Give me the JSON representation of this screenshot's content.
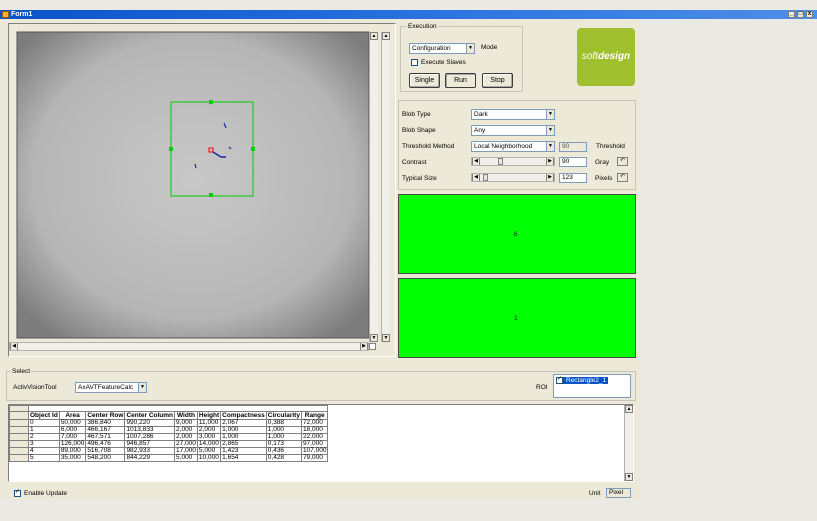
{
  "window": {
    "title": "Form1",
    "minimize": "_",
    "maximize": "□",
    "close": "x"
  },
  "execution": {
    "group_label": "Execution",
    "mode_value": "Configuration",
    "mode_label": "Mode",
    "execute_slaves_label": "Execute Slaves",
    "single_label": "Single",
    "run_label": "Run",
    "stop_label": "Stop"
  },
  "logo": {
    "part1": "soft",
    "part2": "design",
    "bg_color": "#9fbf2e"
  },
  "params": {
    "blob_type_label": "Blob Type",
    "blob_type_value": "Dark",
    "blob_shape_label": "Blob Shape",
    "blob_shape_value": "Any",
    "threshold_method_label": "Threshold Method",
    "threshold_method_value": "Local Neighborhood",
    "threshold_value": "90",
    "threshold_label": "Threshold",
    "contrast_label": "Contrast",
    "contrast_value": "90",
    "contrast_unit": "Gray",
    "contrast_level": 0.3,
    "typical_size_label": "Typical Size",
    "typical_size_value": "123",
    "typical_size_unit": "Pixels",
    "typical_size_level": 0.05
  },
  "panels": {
    "top_value": "6",
    "bottom_value": "1",
    "color": "#00ff00"
  },
  "select": {
    "group_label": "Select",
    "tool_label": "ActivVisionTool",
    "tool_value": "AxAVTFeatureCalc",
    "roi_label": "ROI",
    "roi_item": "Rectangle2_1"
  },
  "table": {
    "columns": [
      "Object Id",
      "Area",
      "Center Row",
      "Center Column",
      "Width",
      "Height",
      "Compactness",
      "Circularity",
      "Range"
    ],
    "rows": [
      [
        "0",
        "50,000",
        "386,840",
        "990,220",
        "9,000",
        "11,000",
        "2,067",
        "0,388",
        "72,000"
      ],
      [
        "1",
        "6,000",
        "466,167",
        "1013,833",
        "2,000",
        "2,000",
        "1,000",
        "1,000",
        "18,000"
      ],
      [
        "2",
        "7,000",
        "467,571",
        "1007,286",
        "2,000",
        "3,000",
        "1,000",
        "1,000",
        "22,000"
      ],
      [
        "3",
        "126,000",
        "496,476",
        "946,857",
        "27,000",
        "14,000",
        "2,865",
        "0,173",
        "97,000"
      ],
      [
        "4",
        "89,000",
        "516,708",
        "982,933",
        "17,000",
        "5,000",
        "1,423",
        "0,436",
        "107,000"
      ],
      [
        "5",
        "35,000",
        "548,200",
        "844,229",
        "5,000",
        "10,000",
        "1,654",
        "0,428",
        "79,000"
      ]
    ]
  },
  "footer": {
    "enable_update_label": "Enable Update",
    "unit_label": "Unit",
    "unit_value": "Pixel"
  },
  "colors": {
    "titlebar": "#0a52c8",
    "roi_rect": "#00cc00",
    "background": "#ebe9e3"
  }
}
